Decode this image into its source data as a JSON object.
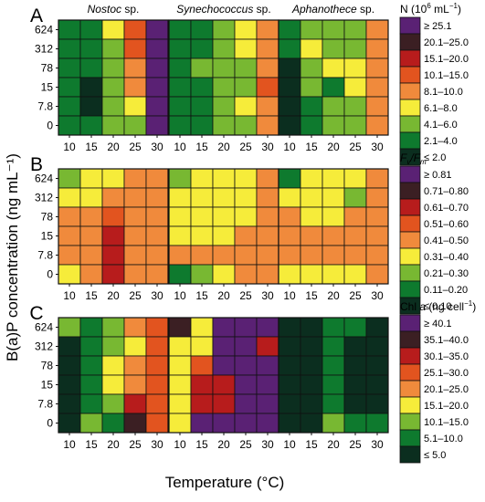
{
  "figure": {
    "ylabel": "B(a)P concentration (ng mL⁻¹)",
    "xlabel": "Temperature (°C)",
    "col_titles": [
      {
        "italic": "Nostoc",
        "rest": " sp."
      },
      {
        "italic": "Synechococcus",
        "rest": " sp."
      },
      {
        "italic": "Aphanothece",
        "rest": " sp."
      }
    ]
  },
  "chart_data": [
    {
      "type": "heatmap",
      "panel": "A",
      "measure": "N (10⁶ mL⁻¹)",
      "legend_title": {
        "main": "N (10",
        "sup": "6",
        "mid": " mL",
        "sup2": "−1",
        "end": ")"
      },
      "x": [
        "10",
        "15",
        "20",
        "25",
        "30"
      ],
      "y": [
        "624",
        "312",
        "78",
        "15",
        "7.8",
        "0"
      ],
      "legend": [
        {
          "label": "≥ 25.1",
          "color": "#5a2174"
        },
        {
          "label": "20.1–25.0",
          "color": "#3b1f23"
        },
        {
          "label": "15.1–20.0",
          "color": "#b71c1c"
        },
        {
          "label": "10.1–15.0",
          "color": "#e2541f"
        },
        {
          "label": "8.1–10.0",
          "color": "#f08a3c"
        },
        {
          "label": "6.1–8.0",
          "color": "#f6ec3a"
        },
        {
          "label": "4.1–6.0",
          "color": "#78b832"
        },
        {
          "label": "2.1–4.0",
          "color": "#0e7a2e"
        },
        {
          "label": "≤ 2.0",
          "color": "#0b2e1f"
        }
      ],
      "grids": [
        [
          [
            7,
            7,
            5,
            3,
            0
          ],
          [
            7,
            7,
            6,
            3,
            0
          ],
          [
            7,
            7,
            6,
            4,
            0
          ],
          [
            7,
            8,
            6,
            4,
            0
          ],
          [
            7,
            8,
            6,
            5,
            0
          ],
          [
            7,
            7,
            6,
            6,
            0
          ]
        ],
        [
          [
            7,
            7,
            6,
            5,
            4
          ],
          [
            7,
            7,
            6,
            5,
            4
          ],
          [
            7,
            6,
            6,
            6,
            4
          ],
          [
            7,
            7,
            6,
            6,
            3
          ],
          [
            7,
            7,
            6,
            5,
            4
          ],
          [
            7,
            7,
            6,
            6,
            4
          ]
        ],
        [
          [
            7,
            6,
            6,
            6,
            4
          ],
          [
            7,
            5,
            6,
            6,
            4
          ],
          [
            8,
            6,
            5,
            5,
            4
          ],
          [
            8,
            6,
            7,
            5,
            4
          ],
          [
            8,
            7,
            6,
            6,
            4
          ],
          [
            8,
            7,
            6,
            6,
            4
          ]
        ]
      ]
    },
    {
      "type": "heatmap",
      "panel": "B",
      "measure": "Fv/Fm",
      "legend_title": {
        "main": "F",
        "sub": "v",
        "mid": "/F",
        "sub2": "m"
      },
      "x": [
        "10",
        "15",
        "20",
        "25",
        "30"
      ],
      "y": [
        "624",
        "312",
        "78",
        "15",
        "7.8",
        "0"
      ],
      "legend": [
        {
          "label": "≥ 0.81",
          "color": "#5a2174"
        },
        {
          "label": "0.71–0.80",
          "color": "#3b1f23"
        },
        {
          "label": "0.61–0.70",
          "color": "#b71c1c"
        },
        {
          "label": "0.51–0.60",
          "color": "#e2541f"
        },
        {
          "label": "0.41–0.50",
          "color": "#f08a3c"
        },
        {
          "label": "0.31–0.40",
          "color": "#f6ec3a"
        },
        {
          "label": "0.21–0.30",
          "color": "#78b832"
        },
        {
          "label": "0.11–0.20",
          "color": "#0e7a2e"
        },
        {
          "label": "≤ 0.10",
          "color": "#0b2e1f"
        }
      ],
      "grids": [
        [
          [
            6,
            5,
            5,
            4,
            4
          ],
          [
            5,
            5,
            4,
            4,
            4
          ],
          [
            4,
            4,
            3,
            4,
            4
          ],
          [
            4,
            4,
            2,
            4,
            4
          ],
          [
            4,
            4,
            2,
            4,
            4
          ],
          [
            5,
            4,
            2,
            4,
            4
          ]
        ],
        [
          [
            6,
            5,
            5,
            5,
            4
          ],
          [
            5,
            5,
            5,
            5,
            4
          ],
          [
            5,
            5,
            5,
            5,
            4
          ],
          [
            5,
            5,
            5,
            4,
            4
          ],
          [
            4,
            4,
            4,
            4,
            4
          ],
          [
            7,
            6,
            5,
            4,
            4
          ]
        ],
        [
          [
            7,
            5,
            5,
            5,
            4
          ],
          [
            5,
            5,
            5,
            6,
            4
          ],
          [
            4,
            5,
            5,
            4,
            4
          ],
          [
            4,
            4,
            4,
            4,
            4
          ],
          [
            4,
            4,
            4,
            4,
            4
          ],
          [
            5,
            5,
            5,
            5,
            4
          ]
        ]
      ]
    },
    {
      "type": "heatmap",
      "panel": "C",
      "measure": "Chl a (ng cell⁻¹)",
      "legend_title": {
        "main": "Chl ",
        "it": "a",
        "mid": " (ng cell",
        "sup": "−1",
        "end": ")"
      },
      "x": [
        "10",
        "15",
        "20",
        "25",
        "30"
      ],
      "y": [
        "624",
        "312",
        "78",
        "15",
        "7.8",
        "0"
      ],
      "legend": [
        {
          "label": "≥ 40.1",
          "color": "#5a2174"
        },
        {
          "label": "35.1–40.0",
          "color": "#3b1f23"
        },
        {
          "label": "30.1–35.0",
          "color": "#b71c1c"
        },
        {
          "label": "25.1–30.0",
          "color": "#e2541f"
        },
        {
          "label": "20.1–25.0",
          "color": "#f08a3c"
        },
        {
          "label": "15.1–20.0",
          "color": "#f6ec3a"
        },
        {
          "label": "10.1–15.0",
          "color": "#78b832"
        },
        {
          "label": "5.1–10.0",
          "color": "#0e7a2e"
        },
        {
          "label": "≤ 5.0",
          "color": "#0b2e1f"
        }
      ],
      "grids": [
        [
          [
            6,
            7,
            6,
            4,
            3
          ],
          [
            8,
            7,
            6,
            5,
            3
          ],
          [
            8,
            7,
            5,
            4,
            3
          ],
          [
            8,
            7,
            5,
            4,
            3
          ],
          [
            8,
            7,
            6,
            2,
            3
          ],
          [
            8,
            6,
            7,
            1,
            3
          ]
        ],
        [
          [
            1,
            5,
            0,
            0,
            0
          ],
          [
            5,
            5,
            0,
            0,
            2
          ],
          [
            5,
            3,
            0,
            0,
            0
          ],
          [
            5,
            2,
            2,
            0,
            0
          ],
          [
            5,
            2,
            2,
            0,
            0
          ],
          [
            5,
            0,
            0,
            0,
            0
          ]
        ],
        [
          [
            8,
            8,
            7,
            7,
            8
          ],
          [
            8,
            8,
            7,
            8,
            8
          ],
          [
            8,
            8,
            7,
            8,
            8
          ],
          [
            8,
            8,
            7,
            8,
            8
          ],
          [
            8,
            8,
            7,
            8,
            8
          ],
          [
            8,
            8,
            6,
            7,
            7
          ]
        ]
      ]
    }
  ]
}
